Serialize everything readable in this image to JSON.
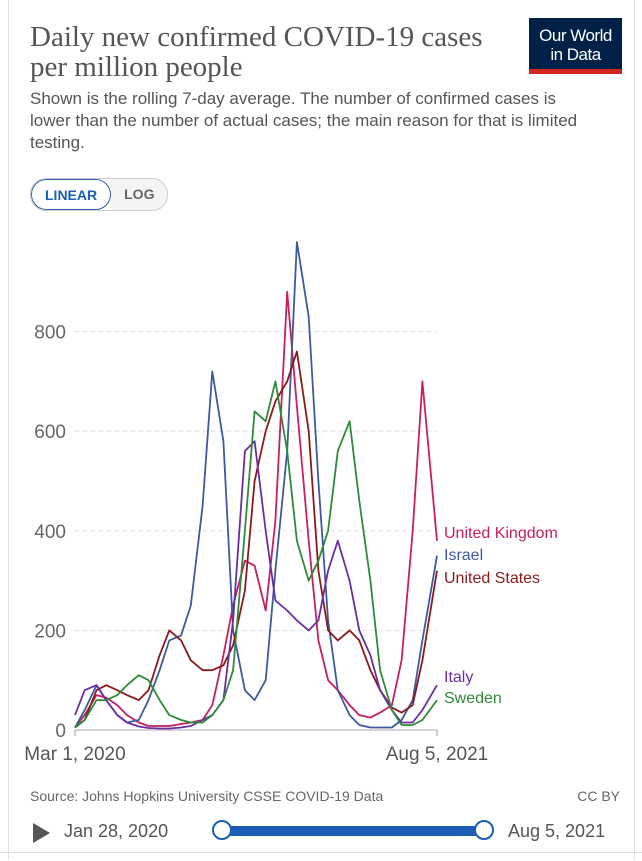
{
  "header": {
    "title": "Daily new confirmed COVID-19 cases per million people",
    "subtitle": "Shown is the rolling 7-day average. The number of confirmed cases is lower than the number of actual cases; the main reason for that is limited testing.",
    "logo_line1": "Our World",
    "logo_line2": "in Data"
  },
  "controls": {
    "linear_label": "LINEAR",
    "log_label": "LOG",
    "active_scale": "linear"
  },
  "footer": {
    "source": "Source: Johns Hopkins University CSSE COVID-19 Data",
    "license": "CC BY"
  },
  "timeline": {
    "start_date": "Jan 28, 2020",
    "end_date": "Aug 5, 2021"
  },
  "colors": {
    "united_kingdom": "#c71f5f",
    "israel": "#3c5aa0",
    "united_states": "#8b1a1a",
    "italy": "#6b2ea0",
    "sweden": "#2e8b37",
    "grid": "#dddddd",
    "accent": "#1a5fb4"
  },
  "chart_data": {
    "type": "line",
    "title": "Daily new confirmed COVID-19 cases per million people",
    "xlabel": "",
    "ylabel": "",
    "x_tick_labels": [
      "Mar 1, 2020",
      "Aug 5, 2021"
    ],
    "y_ticks": [
      0,
      200,
      400,
      600,
      800
    ],
    "ylim": [
      0,
      1000
    ],
    "x": [
      "2020-03-01",
      "2020-03-15",
      "2020-04-01",
      "2020-04-15",
      "2020-05-01",
      "2020-05-15",
      "2020-06-01",
      "2020-06-15",
      "2020-07-01",
      "2020-07-15",
      "2020-08-01",
      "2020-08-15",
      "2020-09-01",
      "2020-09-15",
      "2020-10-01",
      "2020-10-15",
      "2020-11-01",
      "2020-11-15",
      "2020-12-01",
      "2020-12-15",
      "2021-01-01",
      "2021-01-15",
      "2021-02-01",
      "2021-02-15",
      "2021-03-01",
      "2021-03-15",
      "2021-04-01",
      "2021-04-15",
      "2021-05-01",
      "2021-05-15",
      "2021-06-01",
      "2021-06-15",
      "2021-07-01",
      "2021-07-15",
      "2021-08-05"
    ],
    "series": [
      {
        "name": "United Kingdom",
        "values": [
          5,
          30,
          70,
          65,
          50,
          30,
          15,
          8,
          8,
          8,
          12,
          15,
          20,
          50,
          150,
          250,
          340,
          330,
          240,
          420,
          880,
          650,
          380,
          180,
          100,
          80,
          50,
          30,
          25,
          35,
          50,
          140,
          400,
          700,
          380
        ]
      },
      {
        "name": "Israel",
        "values": [
          5,
          40,
          90,
          60,
          30,
          15,
          20,
          60,
          120,
          180,
          190,
          250,
          450,
          720,
          580,
          200,
          80,
          60,
          100,
          320,
          560,
          980,
          830,
          500,
          220,
          80,
          30,
          10,
          5,
          5,
          5,
          20,
          60,
          180,
          350
        ]
      },
      {
        "name": "United States",
        "values": [
          5,
          20,
          80,
          90,
          80,
          70,
          60,
          80,
          150,
          200,
          180,
          140,
          120,
          120,
          130,
          170,
          280,
          500,
          600,
          660,
          700,
          760,
          600,
          320,
          200,
          180,
          200,
          180,
          120,
          80,
          45,
          35,
          50,
          140,
          320
        ]
      },
      {
        "name": "Italy",
        "values": [
          30,
          80,
          90,
          60,
          30,
          15,
          7,
          4,
          3,
          3,
          5,
          8,
          20,
          30,
          60,
          220,
          560,
          580,
          400,
          260,
          240,
          220,
          200,
          220,
          320,
          380,
          300,
          200,
          150,
          80,
          40,
          15,
          15,
          40,
          90
        ]
      },
      {
        "name": "Sweden",
        "values": [
          5,
          20,
          60,
          60,
          70,
          90,
          110,
          100,
          60,
          30,
          20,
          15,
          15,
          30,
          60,
          120,
          400,
          640,
          620,
          700,
          560,
          380,
          300,
          340,
          400,
          560,
          620,
          460,
          300,
          120,
          40,
          10,
          10,
          20,
          60
        ]
      }
    ],
    "legend_position": "right, at line ends",
    "grid": true
  }
}
